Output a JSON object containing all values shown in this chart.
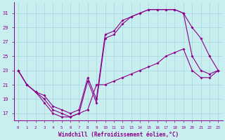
{
  "xlabel": "Windchill (Refroidissement éolien,°C)",
  "background_color": "#c8eef0",
  "line_color": "#8b008b",
  "grid_color": "#a8d8dc",
  "xlim": [
    -0.5,
    23.5
  ],
  "ylim": [
    16,
    32.5
  ],
  "yticks": [
    17,
    19,
    21,
    23,
    25,
    27,
    29,
    31
  ],
  "xticks": [
    0,
    1,
    2,
    3,
    4,
    5,
    6,
    7,
    8,
    9,
    10,
    11,
    12,
    13,
    14,
    15,
    16,
    17,
    18,
    19,
    20,
    21,
    22,
    23
  ],
  "curve1_x": [
    0,
    1,
    2,
    3,
    4,
    5,
    6,
    7,
    8,
    9,
    10,
    11,
    12,
    13,
    14,
    15,
    16,
    17,
    18,
    19,
    20,
    21,
    22,
    23
  ],
  "curve1_y": [
    23,
    21,
    20,
    19,
    17.5,
    17,
    16.5,
    17,
    17.5,
    21,
    21,
    21.5,
    22,
    22.5,
    23,
    23.5,
    24,
    25,
    25.5,
    26,
    23,
    22,
    22,
    23
  ],
  "curve2_x": [
    0,
    1,
    2,
    3,
    4,
    5,
    6,
    7,
    8,
    9,
    10,
    11,
    12,
    13,
    14,
    15,
    16,
    17,
    18,
    19,
    20,
    21,
    22,
    23
  ],
  "curve2_y": [
    23,
    21,
    20,
    19.5,
    18,
    17.5,
    17,
    17.5,
    22,
    19,
    28,
    28.5,
    30,
    30.5,
    31,
    31.5,
    31.5,
    31.5,
    31.5,
    31,
    29,
    27.5,
    25,
    23
  ],
  "curve3_x": [
    0,
    1,
    2,
    3,
    4,
    5,
    6,
    7,
    8,
    9,
    10,
    11,
    12,
    13,
    14,
    15,
    16,
    17,
    18,
    19,
    20,
    21,
    22,
    23
  ],
  "curve3_y": [
    23,
    21,
    20,
    18.5,
    17,
    16.5,
    16.5,
    17,
    21.5,
    18.5,
    27.5,
    28,
    29.5,
    30.5,
    31,
    31.5,
    31.5,
    31.5,
    31.5,
    31,
    25,
    23,
    22.5,
    23
  ]
}
